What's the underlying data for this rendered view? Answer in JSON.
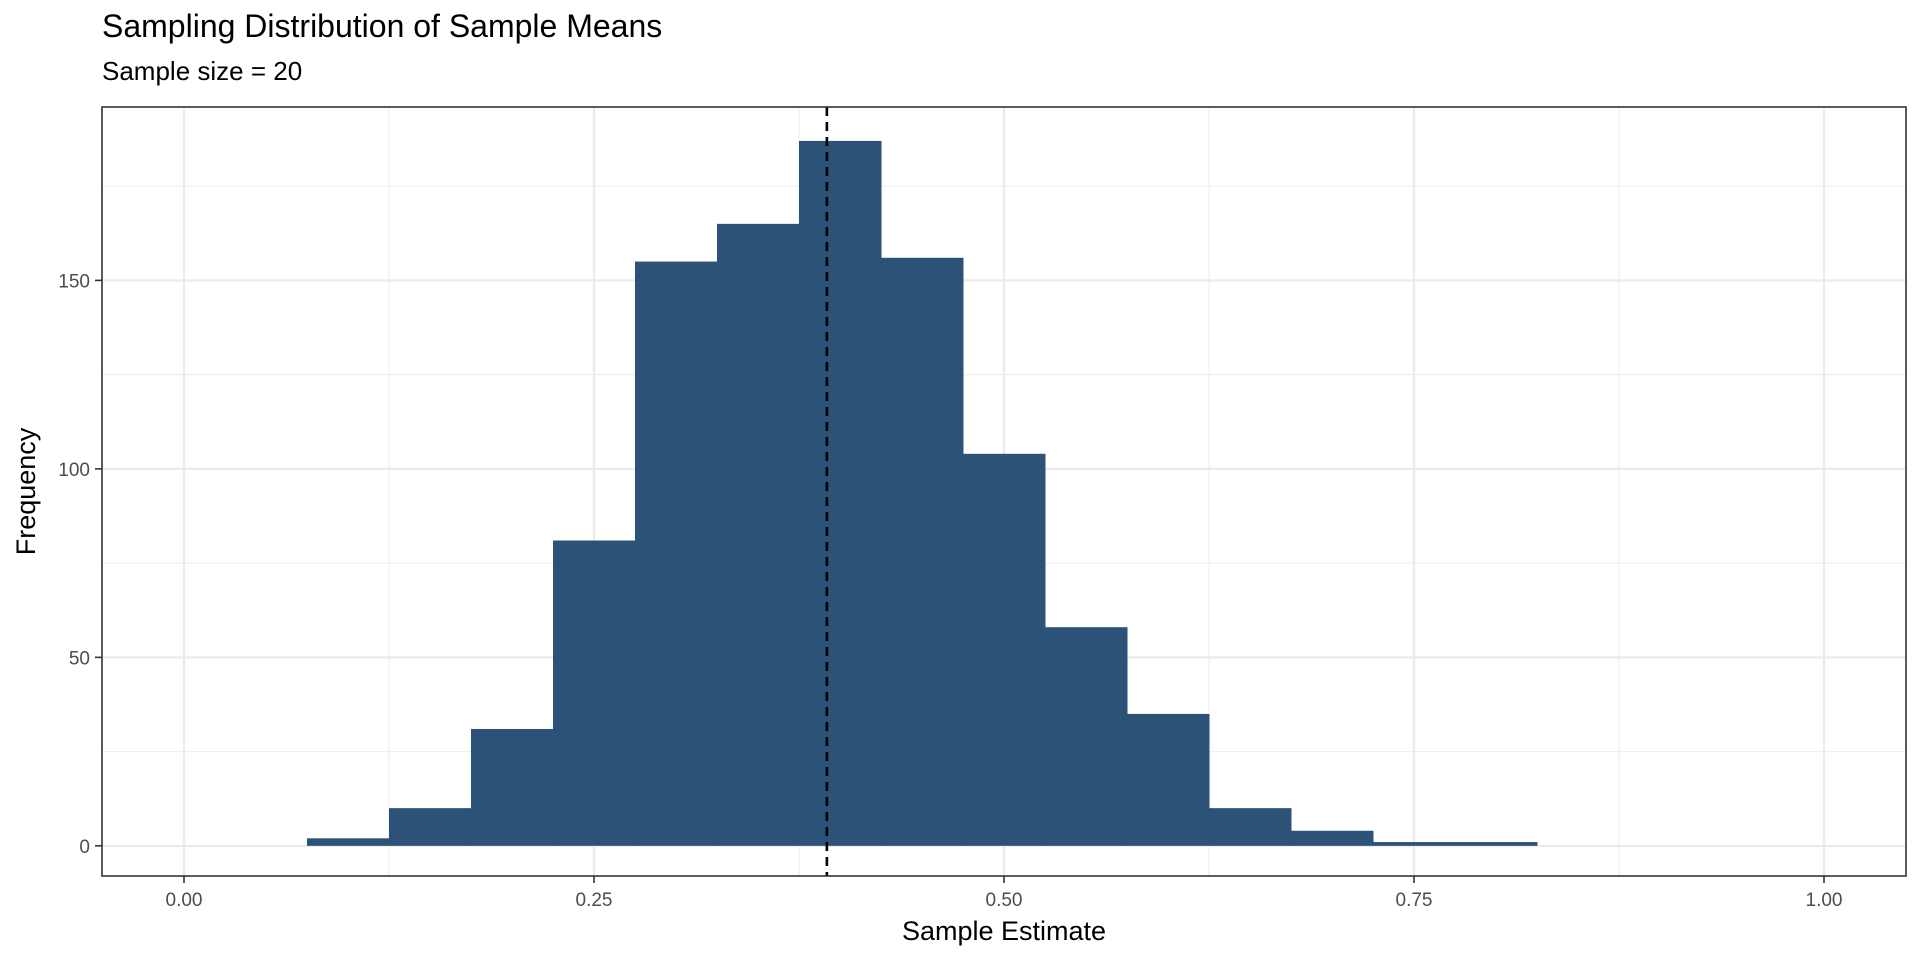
{
  "chart_data": {
    "type": "bar",
    "title": "Sampling Distribution of Sample Means",
    "subtitle": "Sample size = 20",
    "xlabel": "Sample Estimate",
    "ylabel": "Frequency",
    "xlim": [
      -0.05,
      1.05
    ],
    "ylim": [
      -8,
      196
    ],
    "bin_width": 0.05,
    "bins": [
      {
        "x": 0.1,
        "count": 2
      },
      {
        "x": 0.15,
        "count": 10
      },
      {
        "x": 0.2,
        "count": 31
      },
      {
        "x": 0.25,
        "count": 81
      },
      {
        "x": 0.3,
        "count": 155
      },
      {
        "x": 0.35,
        "count": 165
      },
      {
        "x": 0.4,
        "count": 187
      },
      {
        "x": 0.45,
        "count": 156
      },
      {
        "x": 0.5,
        "count": 104
      },
      {
        "x": 0.55,
        "count": 58
      },
      {
        "x": 0.6,
        "count": 35
      },
      {
        "x": 0.65,
        "count": 10
      },
      {
        "x": 0.7,
        "count": 4
      },
      {
        "x": 0.75,
        "count": 1
      },
      {
        "x": 0.8,
        "count": 1
      }
    ],
    "mean_line": 0.392,
    "x_ticks": [
      {
        "value": 0.0,
        "label": "0.00"
      },
      {
        "value": 0.25,
        "label": "0.25"
      },
      {
        "value": 0.5,
        "label": "0.50"
      },
      {
        "value": 0.75,
        "label": "0.75"
      },
      {
        "value": 1.0,
        "label": "1.00"
      }
    ],
    "y_ticks": [
      {
        "value": 0,
        "label": "0"
      },
      {
        "value": 50,
        "label": "50"
      },
      {
        "value": 100,
        "label": "100"
      },
      {
        "value": 150,
        "label": "150"
      }
    ],
    "x_minor_ticks": [
      0.125,
      0.375,
      0.625,
      0.875
    ],
    "y_minor_ticks": [
      25,
      75,
      125,
      175
    ],
    "grid": true,
    "colors": {
      "bar": "#2c5277",
      "grid": "#ebebeb",
      "panel_border": "#333333",
      "mean_line": "#000000"
    }
  }
}
